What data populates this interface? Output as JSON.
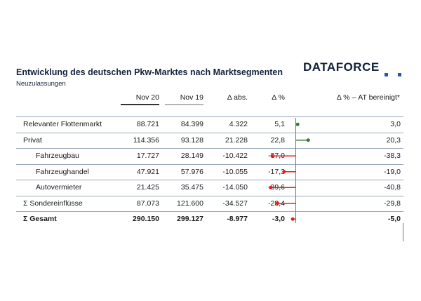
{
  "header": {
    "title": "Entwicklung des deutschen Pkw-Marktes nach Marktsegmenten",
    "subtitle": "Neuzulassungen",
    "logo_text": "DATAFORCE"
  },
  "columns": [
    "Nov 20",
    "Nov 19",
    "Δ abs.",
    "Δ %",
    "Δ % – AT bereinigt*"
  ],
  "rows": [
    {
      "label": "Relevanter Flottenmarkt",
      "nov20": "88.721",
      "nov19": "84.399",
      "abs": "4.322",
      "pct": "5,1",
      "adj": "3,0",
      "indent": false,
      "bold": false
    },
    {
      "label": "Privat",
      "nov20": "114.356",
      "nov19": "93.128",
      "abs": "21.228",
      "pct": "22,8",
      "adj": "20,3",
      "indent": false,
      "bold": false
    },
    {
      "label": "Fahrzeugbau",
      "nov20": "17.727",
      "nov19": "28.149",
      "abs": "-10.422",
      "pct": "-37,0",
      "adj": "-38,3",
      "indent": true,
      "bold": false
    },
    {
      "label": "Fahrzeughandel",
      "nov20": "47.921",
      "nov19": "57.976",
      "abs": "-10.055",
      "pct": "-17,3",
      "adj": "-19,0",
      "indent": true,
      "bold": false
    },
    {
      "label": "Autovermieter",
      "nov20": "21.425",
      "nov19": "35.475",
      "abs": "-14.050",
      "pct": "-39,6",
      "adj": "-40,8",
      "indent": true,
      "bold": false
    },
    {
      "label": "Σ Sondereinflüsse",
      "nov20": "87.073",
      "nov19": "121.600",
      "abs": "-34.527",
      "pct": "-28,4",
      "adj": "-29,8",
      "indent": false,
      "bold": false
    },
    {
      "label": "Σ Gesamt",
      "nov20": "290.150",
      "nov19": "299.127",
      "abs": "-8.977",
      "pct": "-3,0",
      "adj": "-5,0",
      "indent": false,
      "bold": true
    }
  ],
  "colors": {
    "positive": "#2e7d32",
    "negative": "#e02020",
    "nov20_bar": "#333333",
    "nov19_bar": "#b5b5b5"
  },
  "chart_data": {
    "type": "bar",
    "orientation": "horizontal",
    "categories": [
      "Relevanter Flottenmarkt",
      "Privat",
      "Fahrzeugbau",
      "Fahrzeughandel",
      "Autovermieter",
      "Σ Sondereinflüsse",
      "Σ Gesamt"
    ],
    "values": [
      3.0,
      20.3,
      -38.3,
      -19.0,
      -40.8,
      -29.8,
      -5.0
    ],
    "title": "Δ % – AT bereinigt*",
    "xlim": [
      -50,
      50
    ]
  }
}
